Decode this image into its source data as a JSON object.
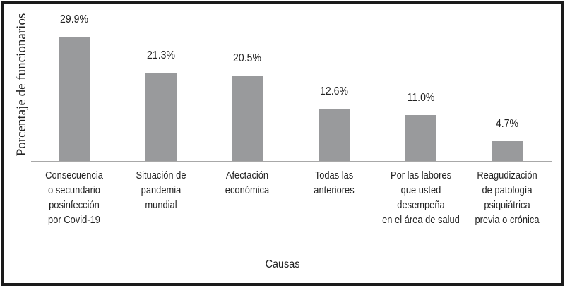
{
  "chart_data": {
    "type": "bar",
    "title": "",
    "xlabel": "Causas",
    "ylabel": "Porcentaje de funcionarios",
    "categories": [
      "Consecuencia\no secundario\nposinfección\npor Covid-19",
      "Situación de\npandemia\nmundial",
      "Afectación\neconómica",
      "Todas las\nanteriores",
      "Por las labores\nque usted\ndesempeña\nen el área de salud",
      "Reagudización\nde patología\npsiquiátrica\nprevia o crónica"
    ],
    "values": [
      29.9,
      21.3,
      20.5,
      12.6,
      11.0,
      4.7
    ],
    "value_labels": [
      "29.9%",
      "21.3%",
      "20.5%",
      "12.6%",
      "11.0%",
      "4.7%"
    ],
    "grid": false,
    "legend": null,
    "ylim": [
      0,
      30
    ],
    "bar_color": "#999a9c"
  }
}
